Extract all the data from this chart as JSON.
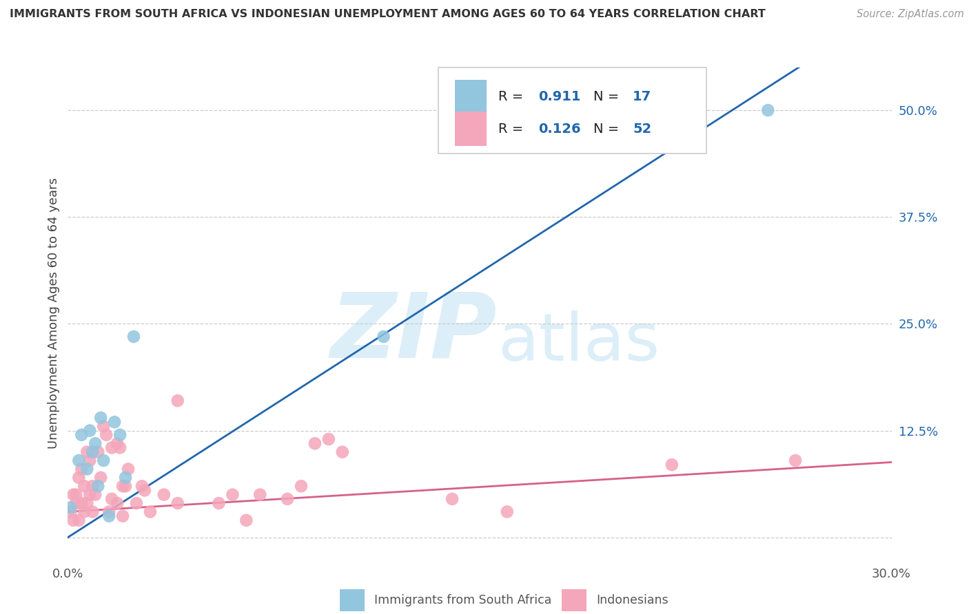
{
  "title": "IMMIGRANTS FROM SOUTH AFRICA VS INDONESIAN UNEMPLOYMENT AMONG AGES 60 TO 64 YEARS CORRELATION CHART",
  "source": "Source: ZipAtlas.com",
  "ylabel": "Unemployment Among Ages 60 to 64 years",
  "legend_label_blue": "Immigrants from South Africa",
  "legend_label_pink": "Indonesians",
  "blue_color": "#92c5de",
  "pink_color": "#f4a6ba",
  "blue_line_color": "#2166ac",
  "pink_line_color": "#d6608a",
  "watermark_zip": "ZIP",
  "watermark_atlas": "atlas",
  "xlim": [
    0.0,
    0.3
  ],
  "ylim": [
    -0.025,
    0.55
  ],
  "blue_scatter_x": [
    0.001,
    0.004,
    0.005,
    0.007,
    0.008,
    0.009,
    0.01,
    0.011,
    0.012,
    0.013,
    0.015,
    0.017,
    0.019,
    0.021,
    0.024,
    0.115,
    0.255
  ],
  "blue_scatter_y": [
    0.035,
    0.09,
    0.12,
    0.08,
    0.125,
    0.1,
    0.11,
    0.06,
    0.14,
    0.09,
    0.025,
    0.135,
    0.12,
    0.07,
    0.235,
    0.235,
    0.5
  ],
  "pink_scatter_x": [
    0.001,
    0.002,
    0.002,
    0.003,
    0.003,
    0.004,
    0.004,
    0.005,
    0.005,
    0.006,
    0.006,
    0.007,
    0.007,
    0.008,
    0.008,
    0.009,
    0.009,
    0.01,
    0.011,
    0.012,
    0.013,
    0.014,
    0.015,
    0.016,
    0.016,
    0.018,
    0.018,
    0.019,
    0.02,
    0.02,
    0.021,
    0.022,
    0.025,
    0.027,
    0.028,
    0.03,
    0.035,
    0.04,
    0.04,
    0.055,
    0.06,
    0.065,
    0.07,
    0.08,
    0.085,
    0.09,
    0.095,
    0.1,
    0.14,
    0.16,
    0.22,
    0.265
  ],
  "pink_scatter_y": [
    0.03,
    0.02,
    0.05,
    0.05,
    0.04,
    0.02,
    0.07,
    0.04,
    0.08,
    0.03,
    0.06,
    0.04,
    0.1,
    0.05,
    0.09,
    0.06,
    0.03,
    0.05,
    0.1,
    0.07,
    0.13,
    0.12,
    0.03,
    0.045,
    0.105,
    0.04,
    0.11,
    0.105,
    0.06,
    0.025,
    0.06,
    0.08,
    0.04,
    0.06,
    0.055,
    0.03,
    0.05,
    0.04,
    0.16,
    0.04,
    0.05,
    0.02,
    0.05,
    0.045,
    0.06,
    0.11,
    0.115,
    0.1,
    0.045,
    0.03,
    0.085,
    0.09
  ],
  "blue_line_x": [
    0.0,
    0.3
  ],
  "blue_line_y": [
    0.0,
    0.62
  ],
  "pink_line_x": [
    0.0,
    0.3
  ],
  "pink_line_y": [
    0.03,
    0.088
  ],
  "ytick_vals": [
    0.0,
    0.125,
    0.25,
    0.375,
    0.5
  ],
  "ytick_labels": [
    "",
    "12.5%",
    "25.0%",
    "37.5%",
    "50.0%"
  ],
  "xtick_vals": [
    0.0,
    0.3
  ],
  "xtick_labels": [
    "0.0%",
    "30.0%"
  ]
}
